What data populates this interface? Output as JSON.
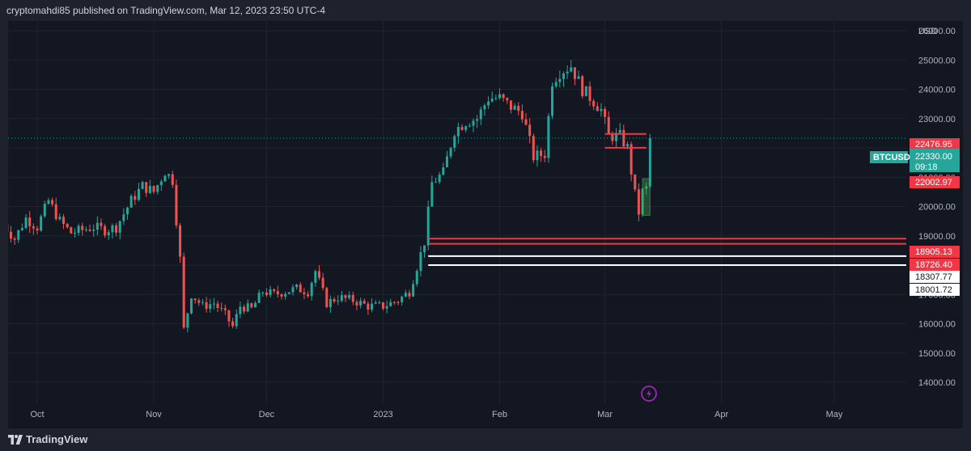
{
  "header": {
    "published_line": "cryptomahdi85 published on TradingView.com, Mar 12, 2023 23:50 UTC-4"
  },
  "footer": {
    "brand": "TradingView"
  },
  "colors": {
    "background": "#131722",
    "grid": "#1f2330",
    "up": "#26a69a",
    "down": "#ef5350",
    "level_red": "#f23645",
    "level_white": "#ffffff",
    "accent": "#9c27b0"
  },
  "icons": {
    "logo": "tradingview-logo-icon",
    "event": "lightning-event-icon"
  },
  "chart_data": {
    "type": "candlestick",
    "symbol": "BTCUSD",
    "currency": "USD",
    "timeframe_hint": "daily",
    "ylim": [
      13400,
      27000
    ],
    "y_ticks": [
      "14000.00",
      "15000.00",
      "16000.00",
      "17000.00",
      "18000.00",
      "19000.00",
      "20000.00",
      "21000.00",
      "22000.00",
      "23000.00",
      "24000.00",
      "25000.00",
      "26000.00"
    ],
    "x_ticks": [
      "Oct",
      "Nov",
      "Dec",
      "2023",
      "Feb",
      "Mar",
      "Apr",
      "May"
    ],
    "last_price": {
      "value": "22330.00",
      "countdown": "09:18",
      "symbol_label": "BTCUSD"
    },
    "level_labels": [
      {
        "text": "22476.95",
        "kind": "red"
      },
      {
        "text": "22002.97",
        "kind": "red"
      },
      {
        "text": "18905.13",
        "kind": "red"
      },
      {
        "text": "18726.40",
        "kind": "red"
      },
      {
        "text": "18307.77",
        "kind": "white"
      },
      {
        "text": "18001.72",
        "kind": "white"
      }
    ],
    "levels": [
      {
        "price": 22476.95,
        "from": "2023-03-01",
        "to": "2023-03-12",
        "color": "red"
      },
      {
        "price": 22002.97,
        "from": "2023-03-01",
        "to": "2023-03-12",
        "color": "red"
      },
      {
        "price": 18905.13,
        "from": "2023-01-13",
        "to": "2023-06-01",
        "color": "red"
      },
      {
        "price": 18726.4,
        "from": "2023-01-13",
        "to": "2023-06-01",
        "color": "red"
      },
      {
        "price": 18307.77,
        "from": "2023-01-13",
        "to": "2023-06-01",
        "color": "white"
      },
      {
        "price": 18001.72,
        "from": "2023-01-13",
        "to": "2023-06-01",
        "color": "white"
      }
    ],
    "zone": {
      "from": "2023-03-11",
      "to": "2023-03-13",
      "low": 19700,
      "high": 20950
    },
    "close_series": [
      [
        "2022-09-22",
        19400
      ],
      [
        "2022-09-25",
        18900
      ],
      [
        "2022-09-28",
        19600
      ],
      [
        "2022-10-01",
        19300
      ],
      [
        "2022-10-04",
        20200
      ],
      [
        "2022-10-07",
        19500
      ],
      [
        "2022-10-10",
        19100
      ],
      [
        "2022-10-13",
        19200
      ],
      [
        "2022-10-16",
        19300
      ],
      [
        "2022-10-19",
        19200
      ],
      [
        "2022-10-22",
        19300
      ],
      [
        "2022-10-26",
        20200
      ],
      [
        "2022-10-29",
        20700
      ],
      [
        "2022-11-01",
        20500
      ],
      [
        "2022-11-04",
        21200
      ],
      [
        "2022-11-06",
        20900
      ],
      [
        "2022-11-08",
        18200
      ],
      [
        "2022-11-09",
        15800
      ],
      [
        "2022-11-11",
        17000
      ],
      [
        "2022-11-14",
        16600
      ],
      [
        "2022-11-17",
        16700
      ],
      [
        "2022-11-20",
        16300
      ],
      [
        "2022-11-22",
        15900
      ],
      [
        "2022-11-24",
        16600
      ],
      [
        "2022-11-27",
        16500
      ],
      [
        "2022-11-30",
        17100
      ],
      [
        "2022-12-03",
        17000
      ],
      [
        "2022-12-06",
        17100
      ],
      [
        "2022-12-09",
        17200
      ],
      [
        "2022-12-12",
        17100
      ],
      [
        "2022-12-14",
        17800
      ],
      [
        "2022-12-17",
        16700
      ],
      [
        "2022-12-20",
        16900
      ],
      [
        "2022-12-24",
        16800
      ],
      [
        "2022-12-28",
        16600
      ],
      [
        "2023-01-01",
        16600
      ],
      [
        "2023-01-05",
        16800
      ],
      [
        "2023-01-08",
        17100
      ],
      [
        "2023-01-12",
        18800
      ],
      [
        "2023-01-14",
        20800
      ],
      [
        "2023-01-17",
        21150
      ],
      [
        "2023-01-20",
        22600
      ],
      [
        "2023-01-23",
        22900
      ],
      [
        "2023-01-26",
        23000
      ],
      [
        "2023-01-29",
        23700
      ],
      [
        "2023-02-01",
        23700
      ],
      [
        "2023-02-04",
        23400
      ],
      [
        "2023-02-07",
        23200
      ],
      [
        "2023-02-10",
        21700
      ],
      [
        "2023-02-13",
        21800
      ],
      [
        "2023-02-15",
        24300
      ],
      [
        "2023-02-17",
        24600
      ],
      [
        "2023-02-20",
        24800
      ],
      [
        "2023-02-23",
        24000
      ],
      [
        "2023-02-26",
        23600
      ],
      [
        "2023-02-28",
        23300
      ],
      [
        "2023-03-02",
        22400
      ],
      [
        "2023-03-05",
        22400
      ],
      [
        "2023-03-07",
        22000
      ],
      [
        "2023-03-09",
        20400
      ],
      [
        "2023-03-10",
        19800
      ],
      [
        "2023-03-11",
        20500
      ],
      [
        "2023-03-12",
        20600
      ],
      [
        "2023-03-13",
        22330
      ]
    ]
  }
}
